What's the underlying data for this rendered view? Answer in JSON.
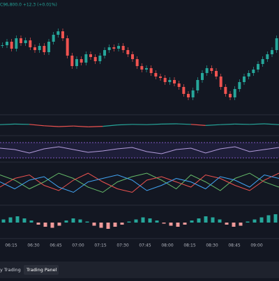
{
  "header": {
    "quote": "C96,800.0 +12.3 (+0.01%)"
  },
  "price": {
    "type": "candles",
    "closes": [
      95,
      100,
      90,
      105,
      98,
      102,
      92,
      88,
      94,
      85,
      100,
      110,
      115,
      105,
      80,
      65,
      75,
      70,
      82,
      78,
      72,
      80,
      88,
      92,
      90,
      94,
      88,
      82,
      75,
      65,
      60,
      62,
      55,
      50,
      48,
      42,
      45,
      40,
      35,
      25,
      20,
      30,
      45,
      55,
      62,
      58,
      50,
      35,
      25,
      20,
      32,
      42,
      50,
      55,
      60,
      68,
      75,
      82,
      88,
      105
    ]
  },
  "indicators": {
    "trend": {
      "color_up": "#26a69a",
      "color_down": "#ef5350",
      "values": [
        0.2,
        0.4,
        0.3,
        -0.2,
        -0.5,
        -0.3,
        -0.6,
        -0.4,
        0.1,
        0.3,
        0.2,
        0.4,
        0.5,
        0.3,
        -0.1,
        0.2,
        0.4,
        0.3,
        0.5,
        0.2
      ]
    },
    "oscillator": {
      "color": "#b39ddb",
      "values": [
        0.3,
        0.1,
        -0.4,
        0.2,
        0.5,
        0.1,
        -0.3,
        -0.1,
        0.2,
        0.4,
        -0.2,
        -0.5,
        0.1,
        0.3,
        -0.4,
        0.2,
        0.5,
        -0.2,
        0.1,
        0.4
      ]
    },
    "lines": {
      "series": [
        {
          "color": "#66bb6a",
          "values": [
            0.5,
            0.2,
            -0.3,
            0.1,
            0.6,
            0.3,
            -0.2,
            -0.5,
            0.1,
            0.4,
            0.6,
            0.2,
            -0.3,
            0.5,
            0.1,
            -0.4,
            0.3,
            0.6,
            0.1,
            -0.2
          ]
        },
        {
          "color": "#ef5350",
          "values": [
            -0.2,
            0.3,
            0.5,
            -0.1,
            -0.4,
            0.2,
            0.6,
            0.1,
            -0.3,
            -0.5,
            0.2,
            0.4,
            0.1,
            -0.2,
            0.5,
            0.3,
            -0.1,
            -0.4,
            0.2,
            0.6
          ]
        },
        {
          "color": "#42a5f5",
          "values": [
            0.1,
            -0.3,
            0.2,
            0.4,
            -0.2,
            -0.5,
            0.1,
            0.3,
            0.5,
            0.2,
            -0.4,
            -0.1,
            0.3,
            0.1,
            -0.3,
            0.4,
            0.2,
            -0.2,
            0.5,
            0.3
          ]
        }
      ]
    },
    "macd": {
      "values": [
        0.3,
        0.5,
        0.6,
        0.4,
        0.2,
        -0.2,
        -0.4,
        -0.5,
        -0.3,
        0.2,
        0.4,
        0.3,
        0.1,
        -0.3,
        -0.5,
        -0.6,
        -0.4,
        -0.2,
        0.1,
        0.3,
        0.5,
        0.4,
        0.2,
        -0.1,
        -0.3,
        -0.4,
        -0.2,
        0.2,
        0.4,
        0.6,
        0.5,
        0.3,
        -0.2,
        -0.4,
        -0.3,
        0.1,
        0.3,
        0.5,
        0.7,
        0.8
      ]
    }
  },
  "time_axis": [
    "06:15",
    "06:30",
    "06:45",
    "07:00",
    "07:15",
    "07:30",
    "07:45",
    "08:00",
    "08:15",
    "08:30",
    "08:45",
    "09:00"
  ],
  "tabs": [
    "y Trading",
    "Trading Panel"
  ]
}
